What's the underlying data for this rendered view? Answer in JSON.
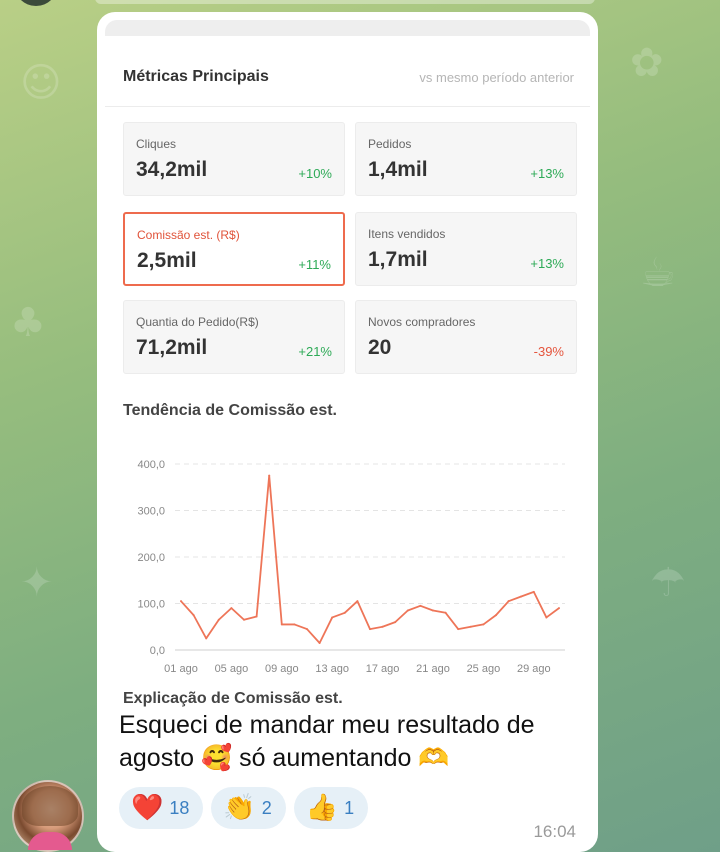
{
  "metrics": {
    "title": "Métricas Principais",
    "subtitle": "vs mesmo período anterior",
    "cards": [
      {
        "label": "Cliques",
        "value": "34,2mil",
        "change": "+10%"
      },
      {
        "label": "Pedidos",
        "value": "1,4mil",
        "change": "+13%"
      },
      {
        "label": "Comissão est. (R$)",
        "value": "2,5mil",
        "change": "+11%"
      },
      {
        "label": "Itens vendidos",
        "value": "1,7mil",
        "change": "+13%"
      },
      {
        "label": "Quantia do Pedido(R$)",
        "value": "71,2mil",
        "change": "+21%"
      },
      {
        "label": "Novos compradores",
        "value": "20",
        "change": "-39%"
      }
    ]
  },
  "trend": {
    "title": "Tendência de Comissão est."
  },
  "next_section_title": "Explicação de Comissão est.",
  "chart_data": {
    "type": "line",
    "title": "Tendência de Comissão est.",
    "xlabel": "",
    "ylabel": "",
    "ylim": [
      0,
      400
    ],
    "y_ticks": [
      "400,0",
      "300,0",
      "200,0",
      "100,0",
      "0,0"
    ],
    "x_tick_labels": [
      "01 ago",
      "05 ago",
      "09 ago",
      "13 ago",
      "17 ago",
      "21 ago",
      "25 ago",
      "29 ago"
    ],
    "x": [
      "01 ago",
      "02 ago",
      "03 ago",
      "04 ago",
      "05 ago",
      "06 ago",
      "07 ago",
      "08 ago",
      "09 ago",
      "10 ago",
      "11 ago",
      "12 ago",
      "13 ago",
      "14 ago",
      "15 ago",
      "16 ago",
      "17 ago",
      "18 ago",
      "19 ago",
      "20 ago",
      "21 ago",
      "22 ago",
      "23 ago",
      "24 ago",
      "25 ago",
      "26 ago",
      "27 ago",
      "28 ago",
      "29 ago",
      "30 ago",
      "31 ago"
    ],
    "values": [
      105,
      75,
      25,
      65,
      90,
      65,
      72,
      375,
      55,
      55,
      45,
      15,
      70,
      80,
      105,
      45,
      50,
      60,
      85,
      95,
      85,
      80,
      45,
      50,
      55,
      75,
      105,
      115,
      125,
      70,
      90
    ],
    "color": "#ee7558",
    "grid": true
  },
  "message": {
    "text": "Esqueci de mandar meu resultado de agosto 🥰 só aumentando 🫶",
    "time": "16:04"
  },
  "reactions": [
    {
      "icon": "heart-icon",
      "glyph": "❤️",
      "count": "18"
    },
    {
      "icon": "clapping-hands-icon",
      "glyph": "👏",
      "count": "2"
    },
    {
      "icon": "thumbs-up-icon",
      "glyph": "👍",
      "count": "1"
    }
  ],
  "colors": {
    "accent": "#ee6b4d",
    "positive": "#2eaa57",
    "negative": "#e5553d",
    "reaction_count": "#3a7fc1"
  }
}
